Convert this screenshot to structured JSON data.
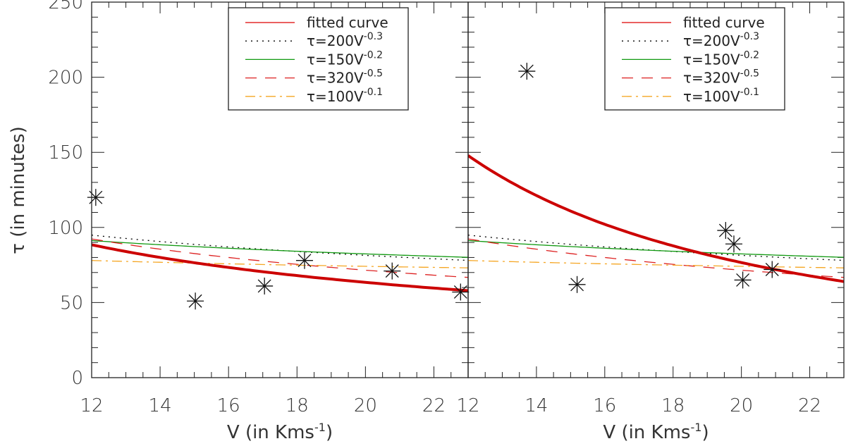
{
  "chart_data": [
    {
      "type": "scatter",
      "panel": "left",
      "xlabel": "V (in Kms",
      "xlabel_sup": "-1",
      "xlabel_end": ")",
      "ylabel": "τ (in minutes)",
      "xlim": [
        12,
        23
      ],
      "ylim": [
        0,
        250
      ],
      "xticks": [
        12,
        14,
        16,
        18,
        20,
        22
      ],
      "yticks": [
        0,
        50,
        100,
        150,
        200,
        250
      ],
      "points": [
        {
          "x": 12.12,
          "y": 120
        },
        {
          "x": 15.03,
          "y": 51
        },
        {
          "x": 17.05,
          "y": 61
        },
        {
          "x": 18.22,
          "y": 78
        },
        {
          "x": 20.78,
          "y": 71
        },
        {
          "x": 22.78,
          "y": 57
        }
      ],
      "fitted_curve": {
        "a": 446,
        "b": -0.651
      },
      "legend_position": "top-right"
    },
    {
      "type": "scatter",
      "panel": "right",
      "xlabel": "V (in Kms",
      "xlabel_sup": "-1",
      "xlabel_end": ")",
      "xlim": [
        12,
        23
      ],
      "ylim": [
        0,
        250
      ],
      "xticks": [
        12,
        14,
        16,
        18,
        20,
        22
      ],
      "points": [
        {
          "x": 13.72,
          "y": 204
        },
        {
          "x": 15.19,
          "y": 62
        },
        {
          "x": 19.54,
          "y": 98
        },
        {
          "x": 19.78,
          "y": 89
        },
        {
          "x": 20.04,
          "y": 65
        },
        {
          "x": 20.9,
          "y": 72
        }
      ],
      "fitted_curve": {
        "a": 3620,
        "b": -1.287
      },
      "legend_position": "top-right"
    }
  ],
  "legend": [
    {
      "label": "fitted curve",
      "sup": "",
      "color": "#dd0000",
      "style": "solid-fit"
    },
    {
      "label": "τ=200V",
      "sup": "-0.3",
      "color": "#000000",
      "style": "dotted",
      "a": 200,
      "b": -0.3
    },
    {
      "label": "τ=150V",
      "sup": "-0.2",
      "color": "#119911",
      "style": "solid",
      "a": 150,
      "b": -0.2
    },
    {
      "label": "τ=320V",
      "sup": "-0.5",
      "color": "#dd2222",
      "style": "dashed",
      "a": 320,
      "b": -0.5
    },
    {
      "label": "τ=100V",
      "sup": "-0.1",
      "color": "#f5a623",
      "style": "dashdot",
      "a": 100,
      "b": -0.1
    }
  ],
  "fit_color": "#cc0000"
}
